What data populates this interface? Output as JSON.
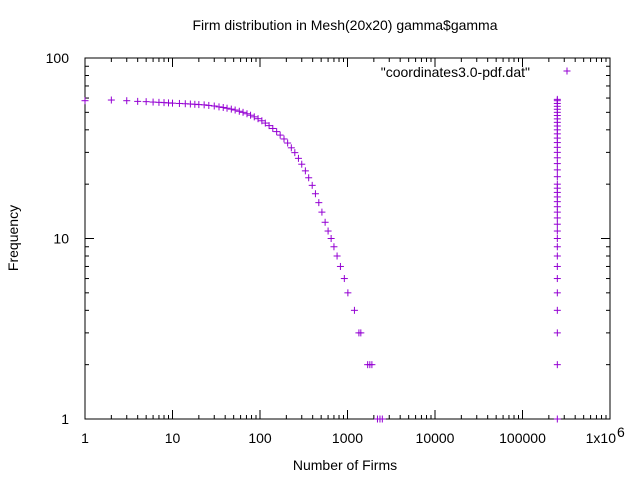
{
  "chart_data": {
    "type": "scatter",
    "title": "Firm distribution in Mesh(20x20) gamma$gamma",
    "xlabel": "Number of Firms",
    "ylabel": "Frequency",
    "xscale": "log",
    "yscale": "log",
    "xlim": [
      1,
      1000000
    ],
    "ylim": [
      1,
      100
    ],
    "x_ticks": [
      {
        "value": 1,
        "label": "1"
      },
      {
        "value": 10,
        "label": "10"
      },
      {
        "value": 100,
        "label": "100"
      },
      {
        "value": 1000,
        "label": "1000"
      },
      {
        "value": 10000,
        "label": "10000"
      },
      {
        "value": 100000,
        "label": "100000"
      },
      {
        "value": 1000000,
        "label": "1x10",
        "sup": "6"
      }
    ],
    "y_ticks": [
      {
        "value": 1,
        "label": "1"
      },
      {
        "value": 10,
        "label": "10"
      },
      {
        "value": 100,
        "label": "100"
      }
    ],
    "legend_position": "top-right",
    "marker": "plus",
    "series": [
      {
        "name": "\"coordinates3.0-pdf.dat\"",
        "color": "#9400d3",
        "points": [
          [
            1,
            58
          ],
          [
            2,
            58.5
          ],
          [
            3,
            58
          ],
          [
            4,
            57.5
          ],
          [
            5,
            57.3
          ],
          [
            6,
            57
          ],
          [
            7,
            56.8
          ],
          [
            8,
            56.6
          ],
          [
            9,
            56.4
          ],
          [
            10,
            56.2
          ],
          [
            12,
            56
          ],
          [
            14,
            55.8
          ],
          [
            16,
            55.6
          ],
          [
            18,
            55.4
          ],
          [
            20,
            55.2
          ],
          [
            23,
            55
          ],
          [
            26,
            54.6
          ],
          [
            30,
            54.2
          ],
          [
            34,
            53.6
          ],
          [
            38,
            53.2
          ],
          [
            42,
            52.7
          ],
          [
            47,
            52.1
          ],
          [
            52,
            51.5
          ],
          [
            58,
            50.7
          ],
          [
            64,
            50
          ],
          [
            71,
            49.1
          ],
          [
            78,
            48.2
          ],
          [
            86,
            47.2
          ],
          [
            95,
            46.1
          ],
          [
            105,
            44.9
          ],
          [
            115,
            43.6
          ],
          [
            127,
            42.2
          ],
          [
            140,
            40.7
          ],
          [
            155,
            39.1
          ],
          [
            170,
            37.4
          ],
          [
            188,
            35.6
          ],
          [
            207,
            33.8
          ],
          [
            228,
            31.8
          ],
          [
            250,
            29.9
          ],
          [
            275,
            27.8
          ],
          [
            300,
            25.8
          ],
          [
            330,
            23.7
          ],
          [
            360,
            21.7
          ],
          [
            395,
            19.7
          ],
          [
            430,
            17.7
          ],
          [
            470,
            15.8
          ],
          [
            510,
            14
          ],
          [
            555,
            12.3
          ],
          [
            600,
            11
          ],
          [
            650,
            10
          ],
          [
            700,
            9
          ],
          [
            760,
            8
          ],
          [
            830,
            7
          ],
          [
            920,
            6
          ],
          [
            1010,
            5
          ],
          [
            1200,
            4
          ],
          [
            1350,
            3
          ],
          [
            1420,
            3
          ],
          [
            1700,
            2
          ],
          [
            1800,
            2
          ],
          [
            1900,
            2
          ],
          [
            2200,
            1
          ],
          [
            2350,
            1
          ],
          [
            2500,
            1
          ],
          [
            250000,
            1
          ],
          [
            250000,
            2
          ],
          [
            250000,
            3
          ],
          [
            250000,
            4
          ],
          [
            250000,
            5
          ],
          [
            250000,
            6
          ],
          [
            250000,
            7
          ],
          [
            250000,
            8
          ],
          [
            250000,
            9
          ],
          [
            250000,
            10
          ],
          [
            250000,
            11
          ],
          [
            250000,
            12
          ],
          [
            250000,
            13
          ],
          [
            250000,
            14
          ],
          [
            250000,
            15
          ],
          [
            250000,
            16
          ],
          [
            250000,
            17
          ],
          [
            250000,
            18
          ],
          [
            250000,
            19
          ],
          [
            250000,
            20
          ],
          [
            250000,
            22
          ],
          [
            250000,
            24
          ],
          [
            250000,
            26
          ],
          [
            250000,
            28
          ],
          [
            250000,
            30
          ],
          [
            250000,
            32
          ],
          [
            250000,
            34
          ],
          [
            250000,
            36
          ],
          [
            250000,
            38
          ],
          [
            250000,
            40
          ],
          [
            250000,
            42
          ],
          [
            250000,
            44
          ],
          [
            250000,
            46
          ],
          [
            250000,
            48
          ],
          [
            250000,
            50
          ],
          [
            250000,
            52
          ],
          [
            250000,
            54
          ],
          [
            250000,
            56
          ],
          [
            250000,
            58
          ],
          [
            250000,
            59
          ]
        ]
      }
    ]
  }
}
